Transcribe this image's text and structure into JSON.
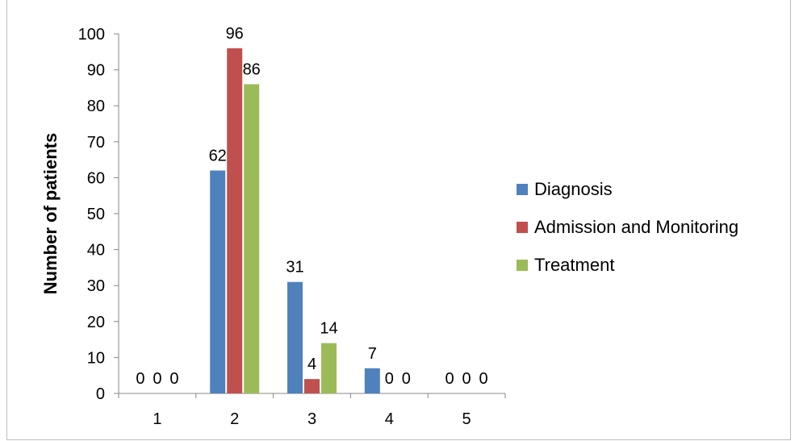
{
  "chart_data": {
    "type": "bar",
    "title": "",
    "xlabel": "",
    "ylabel": "Number of patients",
    "ylim": [
      0,
      100
    ],
    "y_ticks": [
      0,
      10,
      20,
      30,
      40,
      50,
      60,
      70,
      80,
      90,
      100
    ],
    "categories": [
      "1",
      "2",
      "3",
      "4",
      "5"
    ],
    "series": [
      {
        "name": "Diagnosis",
        "color": "#4f81bd",
        "values": [
          0,
          62,
          31,
          7,
          0
        ]
      },
      {
        "name": "Admission and Monitoring",
        "color": "#c0504d",
        "values": [
          0,
          96,
          4,
          0,
          0
        ]
      },
      {
        "name": "Treatment",
        "color": "#9bbb59",
        "values": [
          0,
          86,
          14,
          0,
          0
        ]
      }
    ],
    "grid": false,
    "legend_position": "right"
  }
}
